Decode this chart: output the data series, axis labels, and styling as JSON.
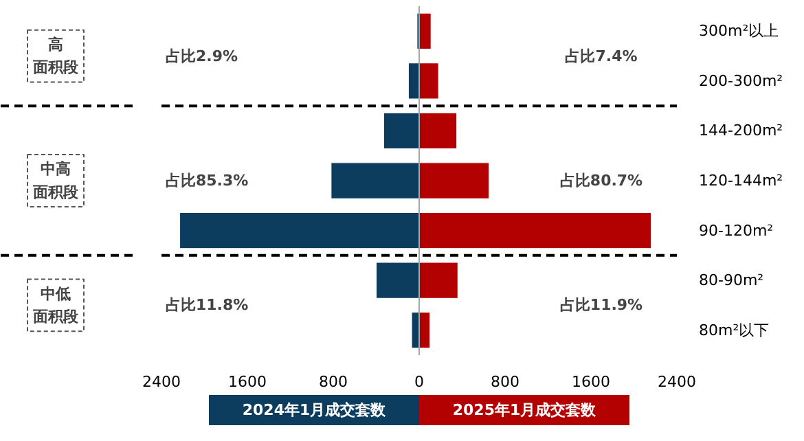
{
  "chart_data": {
    "type": "bar",
    "orientation": "horizontal",
    "stacked": true,
    "categories": [
      "300m²以上",
      "200-300m²",
      "144-200m²",
      "120-144m²",
      "90-120m²",
      "80-90m²",
      "80m²以下"
    ],
    "series": [
      {
        "name": "2024年1月成交套数",
        "color": "#0d3d5e",
        "values": [
          -20,
          -100,
          -330,
          -820,
          -2230,
          -400,
          -70
        ]
      },
      {
        "name": "2025年1月成交套数",
        "color": "#b30000",
        "values": [
          110,
          180,
          350,
          650,
          2160,
          360,
          100
        ]
      }
    ],
    "xlim": [
      -2400,
      2400
    ],
    "xticks": [
      {
        "value": -2400,
        "label": "2400"
      },
      {
        "value": -1600,
        "label": "1600"
      },
      {
        "value": -800,
        "label": "800"
      },
      0,
      800,
      1600,
      2400
    ],
    "ref_lines": [
      {
        "axis": "x",
        "value": 0,
        "color": "#a6a6a6",
        "line_style": "solid"
      }
    ],
    "annotations": [
      "高面积段",
      "占比2.9%",
      "占比7.4%",
      "中高面积段",
      "占比85.3%",
      "占比80.7%",
      "中低面积段",
      "占比11.8%",
      "占比11.9%"
    ],
    "grid": false,
    "legend": "bottom"
  }
}
